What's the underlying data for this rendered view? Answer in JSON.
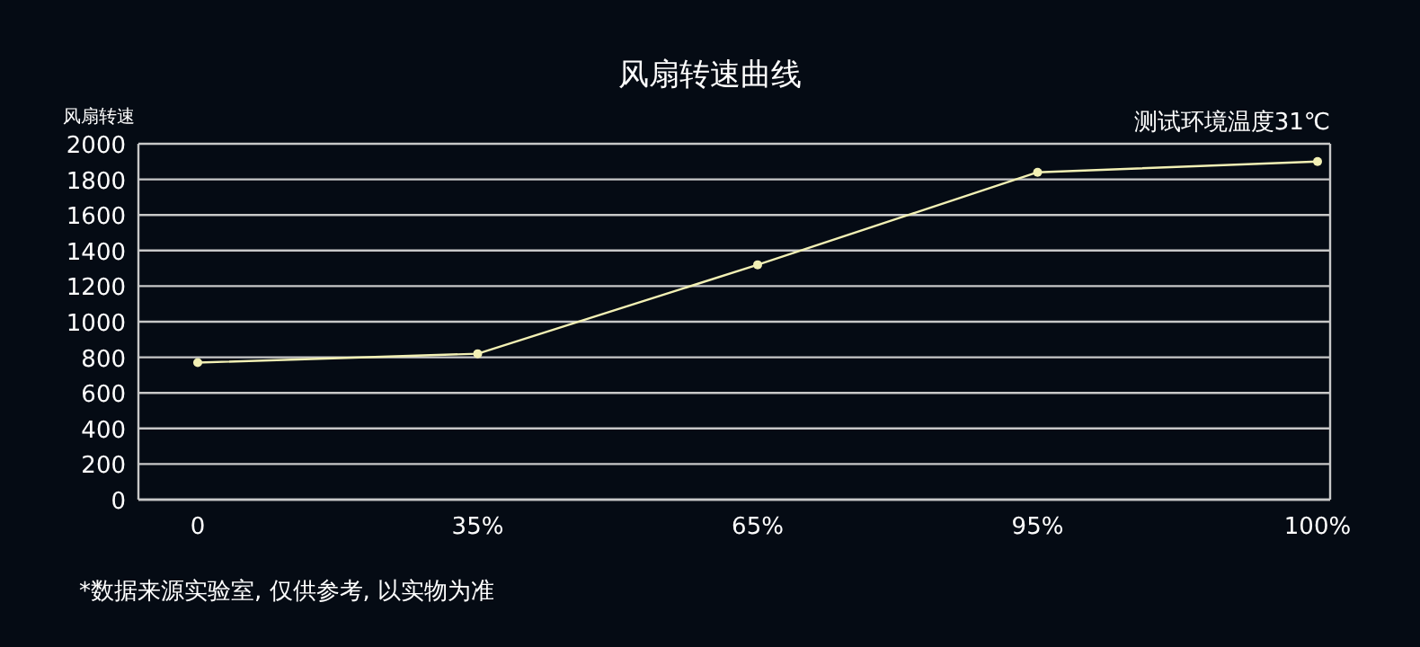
{
  "chart_data": {
    "type": "line",
    "title": "风扇转速曲线",
    "ylabel": "风扇转速",
    "categories": [
      "0",
      "35%",
      "65%",
      "95%",
      "100%"
    ],
    "series": [
      {
        "color": "#f2f0b4",
        "values": [
          770,
          820,
          1320,
          1840,
          1900
        ]
      }
    ],
    "ylim": [
      0,
      2000
    ],
    "yticks": [
      0,
      200,
      400,
      600,
      800,
      1000,
      1200,
      1400,
      1600,
      1800,
      2000
    ],
    "grid": "y",
    "marker": "circle",
    "line_style": "solid",
    "annotations": [
      "测试环境温度31℃",
      "*数据来源实验室, 仅供参考, 以实物为准"
    ]
  }
}
